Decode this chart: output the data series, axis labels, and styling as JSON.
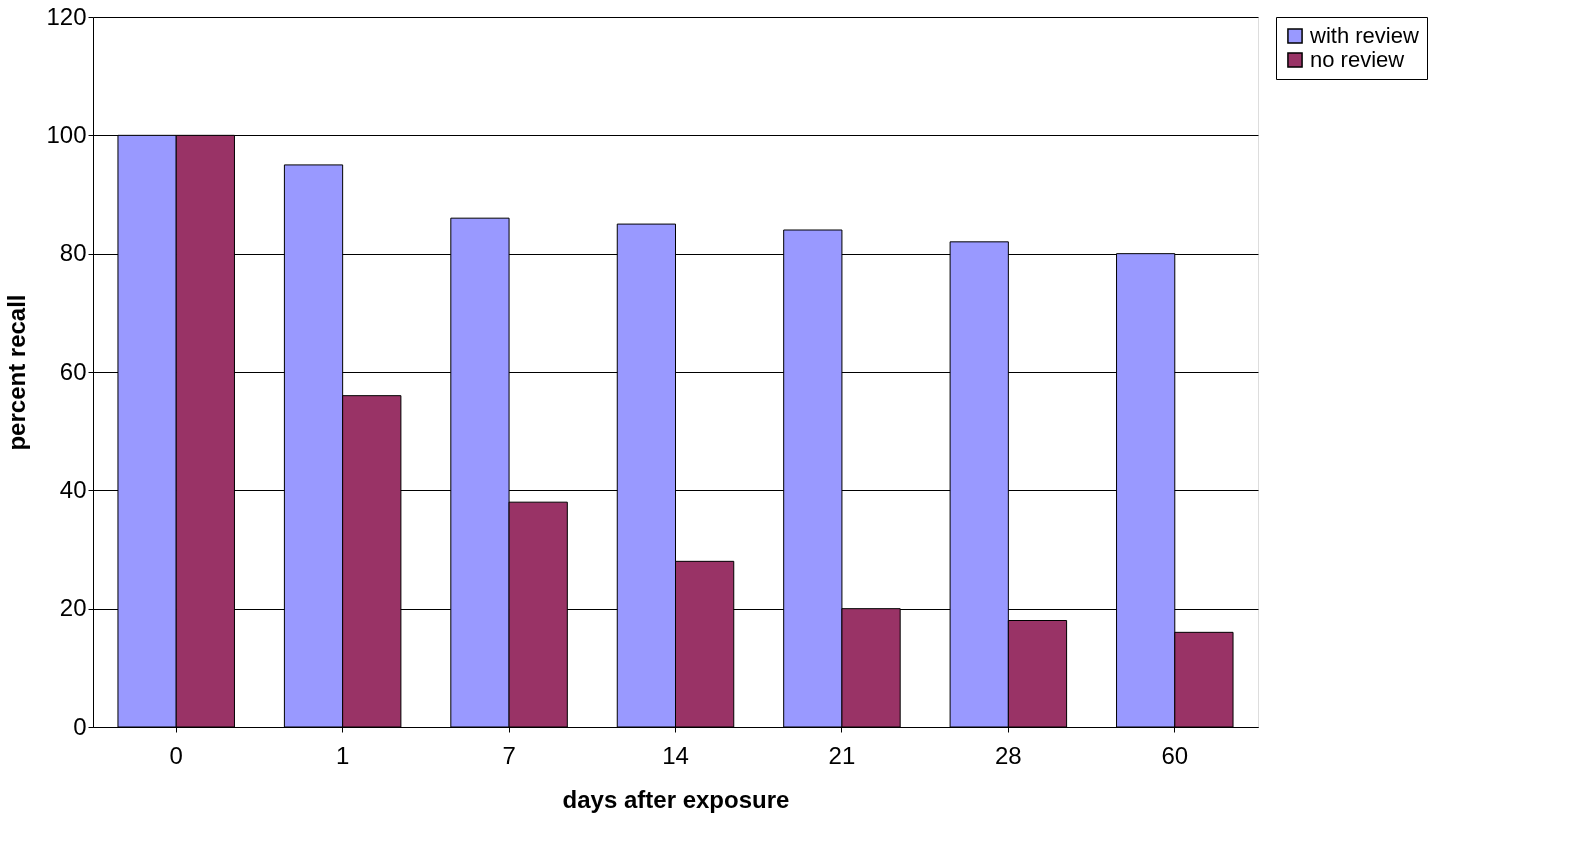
{
  "chart_data": {
    "type": "bar",
    "xlabel": "days after exposure",
    "ylabel": "percent recall",
    "categories": [
      "0",
      "1",
      "7",
      "14",
      "21",
      "28",
      "60"
    ],
    "series": [
      {
        "name": "with review",
        "color": "#9999ff",
        "values": [
          100,
          95,
          86,
          85,
          84,
          82,
          80
        ]
      },
      {
        "name": "no review",
        "color": "#993366",
        "values": [
          100,
          56,
          38,
          28,
          20,
          18,
          16
        ]
      }
    ],
    "ylim": [
      0,
      120
    ],
    "yticks": [
      0,
      20,
      40,
      60,
      80,
      100,
      120
    ],
    "grid": "y",
    "legend": "right"
  }
}
